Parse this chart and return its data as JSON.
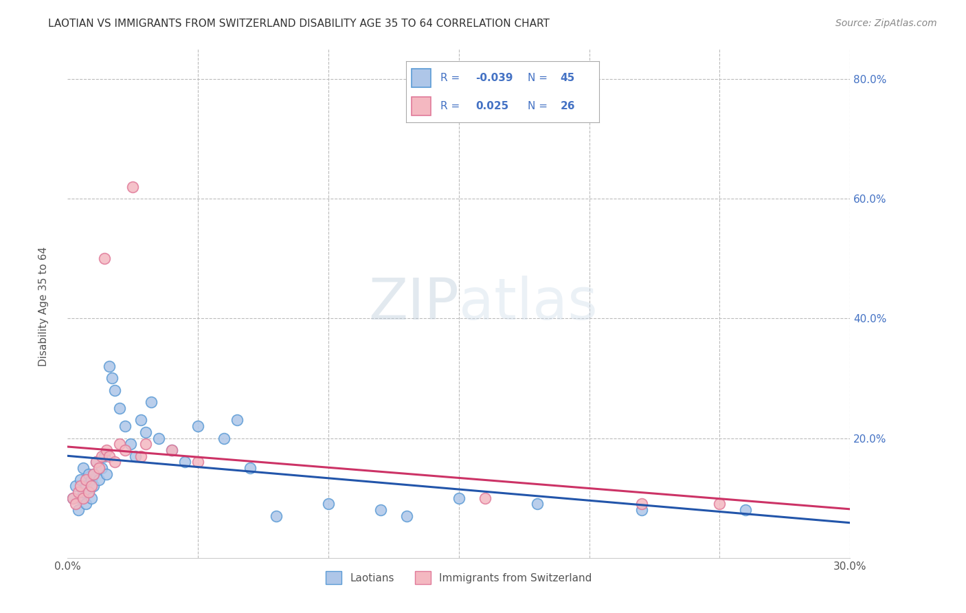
{
  "title": "LAOTIAN VS IMMIGRANTS FROM SWITZERLAND DISABILITY AGE 35 TO 64 CORRELATION CHART",
  "source": "Source: ZipAtlas.com",
  "ylabel": "Disability Age 35 to 64",
  "xlim": [
    0.0,
    0.3
  ],
  "ylim": [
    0.0,
    0.85
  ],
  "background_color": "#ffffff",
  "watermark_text": "ZIPatlas",
  "laotian_color": "#aec6e8",
  "swiss_color": "#f4b8c1",
  "laotian_edge": "#5b9bd5",
  "swiss_edge": "#e07a99",
  "laotian_line_color": "#2255aa",
  "swiss_line_color": "#cc3366",
  "grid_color": "#bbbbbb",
  "legend_text_color": "#4472c4",
  "laotian_scatter_x": [
    0.002,
    0.003,
    0.004,
    0.005,
    0.005,
    0.006,
    0.006,
    0.007,
    0.007,
    0.008,
    0.008,
    0.009,
    0.009,
    0.01,
    0.01,
    0.011,
    0.012,
    0.013,
    0.014,
    0.015,
    0.016,
    0.017,
    0.018,
    0.02,
    0.022,
    0.024,
    0.026,
    0.028,
    0.03,
    0.032,
    0.035,
    0.04,
    0.045,
    0.05,
    0.06,
    0.065,
    0.07,
    0.08,
    0.1,
    0.12,
    0.13,
    0.15,
    0.18,
    0.22,
    0.26
  ],
  "laotian_scatter_y": [
    0.1,
    0.12,
    0.08,
    0.1,
    0.13,
    0.11,
    0.15,
    0.09,
    0.12,
    0.11,
    0.14,
    0.1,
    0.13,
    0.14,
    0.12,
    0.16,
    0.13,
    0.15,
    0.17,
    0.14,
    0.32,
    0.3,
    0.28,
    0.25,
    0.22,
    0.19,
    0.17,
    0.23,
    0.21,
    0.26,
    0.2,
    0.18,
    0.16,
    0.22,
    0.2,
    0.23,
    0.15,
    0.07,
    0.09,
    0.08,
    0.07,
    0.1,
    0.09,
    0.08,
    0.08
  ],
  "swiss_scatter_x": [
    0.002,
    0.003,
    0.004,
    0.005,
    0.006,
    0.007,
    0.008,
    0.009,
    0.01,
    0.011,
    0.012,
    0.013,
    0.014,
    0.015,
    0.016,
    0.018,
    0.02,
    0.022,
    0.025,
    0.028,
    0.03,
    0.04,
    0.05,
    0.16,
    0.22,
    0.25
  ],
  "swiss_scatter_y": [
    0.1,
    0.09,
    0.11,
    0.12,
    0.1,
    0.13,
    0.11,
    0.12,
    0.14,
    0.16,
    0.15,
    0.17,
    0.5,
    0.18,
    0.17,
    0.16,
    0.19,
    0.18,
    0.62,
    0.17,
    0.19,
    0.18,
    0.16,
    0.1,
    0.09,
    0.09
  ]
}
